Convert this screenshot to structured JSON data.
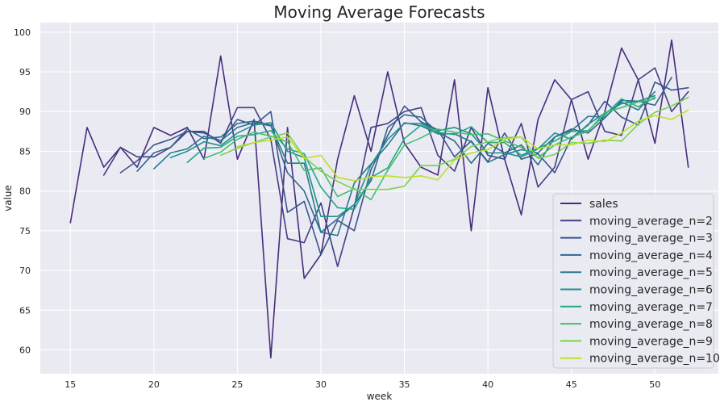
{
  "chart_data": {
    "type": "line",
    "title": "Moving Average Forecasts",
    "xlabel": "week",
    "ylabel": "value",
    "xlim": [
      13.2,
      53.8
    ],
    "ylim": [
      57,
      101.2
    ],
    "xticks": [
      15,
      20,
      25,
      30,
      35,
      40,
      45,
      50
    ],
    "yticks": [
      60,
      65,
      70,
      75,
      80,
      85,
      90,
      95,
      100
    ],
    "grid": true,
    "legend_position": "lower-right",
    "background": "#eaeaf2",
    "series": [
      {
        "name": "sales",
        "color": "#472d7b",
        "x_start": 15,
        "values": [
          76,
          88,
          83,
          85.5,
          83,
          88,
          87,
          88,
          84,
          97,
          84,
          89,
          59,
          88,
          69,
          72,
          84,
          92,
          85,
          95,
          86,
          83,
          82,
          94,
          75,
          93,
          84,
          77,
          89,
          94,
          91.5,
          84,
          90,
          98,
          94,
          86,
          99,
          83
        ]
      },
      {
        "name": "moving_average_n=2",
        "color": "#433e85",
        "x_start": 17,
        "values": [
          82,
          85.5,
          84.3,
          84.3,
          85.5,
          87.5,
          87.5,
          86,
          90.5,
          90.5,
          86.5,
          74,
          73.5,
          78.5,
          70.5,
          78,
          88,
          88.5,
          90,
          90.5,
          84.5,
          82.5,
          88,
          84.5,
          84,
          88.5,
          80.5,
          83,
          91.5,
          92.5,
          87.5,
          87,
          94,
          95.5,
          90,
          92.5
        ]
      },
      {
        "name": "moving_average_n=3",
        "color": "#3a548c",
        "x_start": 18,
        "values": [
          82.3,
          83.8,
          85.8,
          86.5,
          87.5,
          87.3,
          86.3,
          89,
          88.3,
          90,
          77.3,
          78.7,
          72,
          76.3,
          75,
          82.7,
          87,
          90.7,
          88.7,
          87.7,
          84.3,
          86.3,
          83.7,
          87.3,
          84,
          84.7,
          82.3,
          86.7,
          88.3,
          91.3,
          89.3,
          88.3,
          93.7,
          92.7,
          93
        ]
      },
      {
        "name": "moving_average_n=4",
        "color": "#31668e",
        "x_start": 19,
        "values": [
          82.5,
          84.8,
          85.5,
          87.8,
          86.6,
          86.8,
          88.5,
          88.8,
          88.3,
          82.3,
          80,
          74.8,
          76.5,
          78.3,
          81.3,
          88,
          89.6,
          89.3,
          87.4,
          86.3,
          83.5,
          86,
          84.8,
          85.8,
          83.3,
          86.8,
          87.8,
          87.3,
          89.2,
          91.4,
          91.3,
          90.8,
          94.3
        ]
      },
      {
        "name": "moving_average_n=5",
        "color": "#2a788e",
        "x_start": 20,
        "values": [
          82.8,
          84.8,
          85.3,
          86.9,
          86.3,
          88,
          88.6,
          88.2,
          83.5,
          83.5,
          74.8,
          74.4,
          81,
          83.4,
          85.8,
          88.6,
          88.2,
          87.2,
          87.2,
          86.2,
          83.6,
          84.6,
          85.2,
          84.8,
          86.8,
          87.6,
          89.4,
          89.3,
          91.2,
          90.2,
          92.5
        ]
      },
      {
        "name": "moving_average_n=6",
        "color": "#21908d",
        "x_start": 21,
        "values": [
          84.2,
          85,
          86.2,
          85.7,
          87.3,
          88.3,
          88.6,
          85,
          84.2,
          76.8,
          76.8,
          78.3,
          83.3,
          86.5,
          88.5,
          88.5,
          87.6,
          88,
          87.2,
          84.8,
          84.8,
          84.3,
          85.3,
          87.3,
          86.5,
          88.4,
          89.8,
          91,
          91.3,
          92
        ]
      },
      {
        "name": "moving_average_n=7",
        "color": "#22a884",
        "x_start": 22,
        "values": [
          83.6,
          85.4,
          85.5,
          86.9,
          87.1,
          87.6,
          85.3,
          84.7,
          80.5,
          77.9,
          77.7,
          81.7,
          82.9,
          86.6,
          88.3,
          87.4,
          87.1,
          88.1,
          86.1,
          86.1,
          84.5,
          85.4,
          86.3,
          87.5,
          87.6,
          89.6,
          91.6,
          90.6,
          91.8
        ]
      },
      {
        "name": "moving_average_n=8",
        "color": "#44bf70",
        "x_start": 23,
        "values": [
          84.1,
          84.9,
          86.5,
          87.4,
          86.9,
          86.2,
          82.6,
          82.9,
          79.3,
          80.3,
          78.9,
          82.6,
          85.8,
          86.7,
          87.8,
          87.4,
          87.1,
          87.2,
          86.3,
          85.5,
          84.2,
          85.8,
          86.8,
          87.5,
          89.9,
          90.5,
          91.2,
          91.6
        ]
      },
      {
        "name": "moving_average_n=9",
        "color": "#7ad151",
        "x_start": 24,
        "values": [
          84.5,
          85.4,
          86.1,
          86.8,
          87.3,
          84.3,
          82.5,
          81.2,
          80.2,
          80.2,
          80.2,
          80.6,
          83.2,
          83.2,
          84,
          85.6,
          86.2,
          86.7,
          86.8,
          84.1,
          84.6,
          86.1,
          86,
          86.4,
          86.3,
          88.4,
          89.9,
          90.7,
          91.8
        ]
      },
      {
        "name": "moving_average_n=10",
        "color": "#bddf26",
        "x_start": 25,
        "values": [
          85.6,
          86.1,
          86.4,
          86.8,
          84.1,
          84.5,
          81.7,
          81.3,
          81.8,
          81.9,
          81.7,
          81.9,
          81.4,
          83.9,
          84.8,
          85.2,
          86.5,
          86.8,
          85.3,
          85.8,
          85.8,
          86.4,
          86.2,
          87.3,
          88.8,
          89.5,
          89,
          90.2
        ]
      }
    ]
  }
}
